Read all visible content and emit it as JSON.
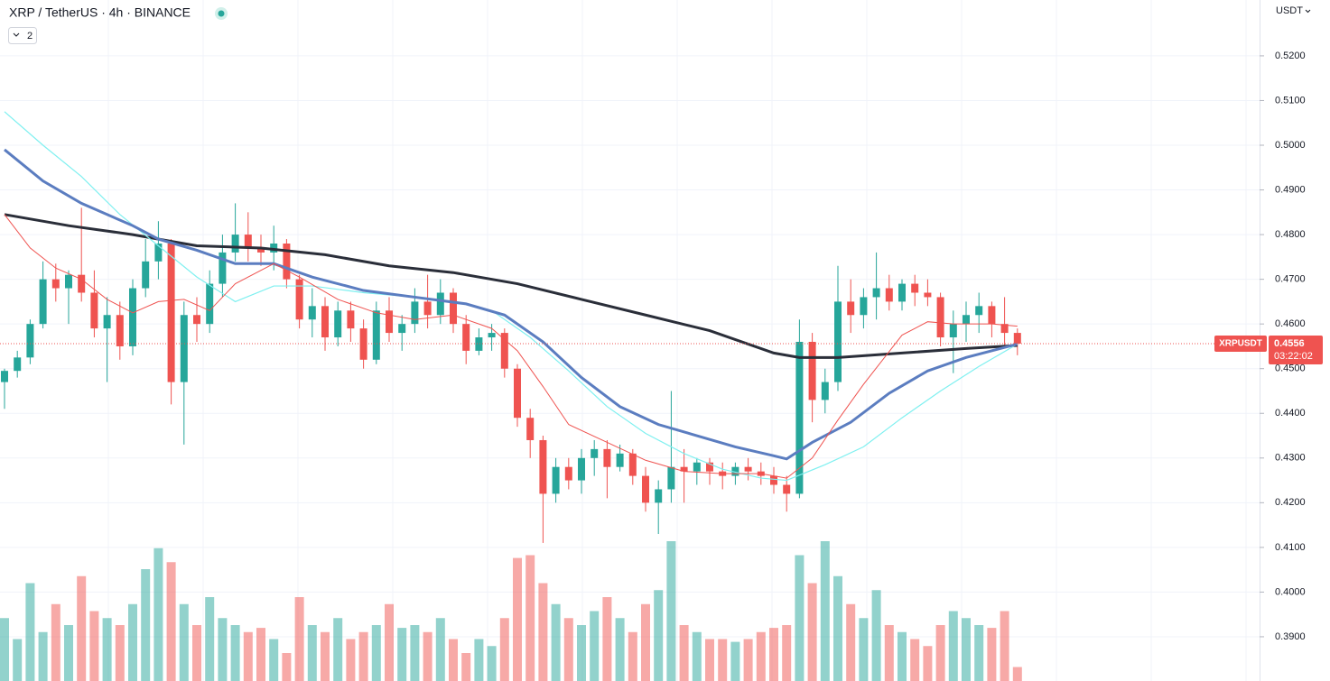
{
  "chart_data": {
    "type": "candlestick",
    "title": "XRP / TetherUS · 4h · BINANCE",
    "indicator_count": "2",
    "currency": "USDT",
    "symbol": "XRPUSDT",
    "last_price": 0.4556,
    "countdown": "03:22:02",
    "up_color": "#26a69a",
    "down_color": "#ef5350",
    "ylim": [
      0.3801,
      0.5325
    ],
    "yticks": [
      {
        "value": 0.39,
        "label": "0.3900"
      },
      {
        "value": 0.4,
        "label": "0.4000"
      },
      {
        "value": 0.41,
        "label": "0.4100"
      },
      {
        "value": 0.42,
        "label": "0.4200"
      },
      {
        "value": 0.43,
        "label": "0.4300"
      },
      {
        "value": 0.44,
        "label": "0.4400"
      },
      {
        "value": 0.45,
        "label": "0.4500"
      },
      {
        "value": 0.46,
        "label": "0.4600"
      },
      {
        "value": 0.47,
        "label": "0.4700"
      },
      {
        "value": 0.48,
        "label": "0.4800"
      },
      {
        "value": 0.49,
        "label": "0.4900"
      },
      {
        "value": 0.5,
        "label": "0.5000"
      },
      {
        "value": 0.51,
        "label": "0.5100"
      },
      {
        "value": 0.52,
        "label": "0.5200"
      }
    ],
    "grid": true,
    "volume_lim": [
      0,
      100
    ],
    "candles": [
      [
        0.447,
        0.45,
        0.441,
        0.4495
      ],
      [
        0.4495,
        0.454,
        0.448,
        0.4525
      ],
      [
        0.4525,
        0.461,
        0.451,
        0.46
      ],
      [
        0.46,
        0.474,
        0.459,
        0.47
      ],
      [
        0.47,
        0.4735,
        0.465,
        0.468
      ],
      [
        0.468,
        0.472,
        0.46,
        0.471
      ],
      [
        0.471,
        0.486,
        0.465,
        0.467
      ],
      [
        0.467,
        0.472,
        0.457,
        0.459
      ],
      [
        0.459,
        0.466,
        0.447,
        0.462
      ],
      [
        0.462,
        0.465,
        0.452,
        0.455
      ],
      [
        0.455,
        0.47,
        0.453,
        0.468
      ],
      [
        0.468,
        0.479,
        0.466,
        0.474
      ],
      [
        0.474,
        0.483,
        0.47,
        0.478
      ],
      [
        0.478,
        0.479,
        0.442,
        0.447
      ],
      [
        0.447,
        0.465,
        0.433,
        0.462
      ],
      [
        0.462,
        0.466,
        0.456,
        0.46
      ],
      [
        0.46,
        0.472,
        0.458,
        0.469
      ],
      [
        0.469,
        0.48,
        0.466,
        0.476
      ],
      [
        0.476,
        0.487,
        0.474,
        0.48
      ],
      [
        0.48,
        0.485,
        0.474,
        0.477
      ],
      [
        0.477,
        0.48,
        0.473,
        0.476
      ],
      [
        0.476,
        0.482,
        0.472,
        0.478
      ],
      [
        0.478,
        0.479,
        0.468,
        0.47
      ],
      [
        0.47,
        0.471,
        0.459,
        0.461
      ],
      [
        0.461,
        0.468,
        0.457,
        0.464
      ],
      [
        0.464,
        0.466,
        0.454,
        0.457
      ],
      [
        0.457,
        0.465,
        0.455,
        0.463
      ],
      [
        0.463,
        0.465,
        0.456,
        0.459
      ],
      [
        0.459,
        0.461,
        0.45,
        0.452
      ],
      [
        0.452,
        0.465,
        0.451,
        0.463
      ],
      [
        0.463,
        0.466,
        0.456,
        0.458
      ],
      [
        0.458,
        0.462,
        0.454,
        0.46
      ],
      [
        0.46,
        0.468,
        0.458,
        0.465
      ],
      [
        0.465,
        0.471,
        0.459,
        0.462
      ],
      [
        0.462,
        0.47,
        0.46,
        0.467
      ],
      [
        0.467,
        0.468,
        0.458,
        0.46
      ],
      [
        0.46,
        0.462,
        0.451,
        0.454
      ],
      [
        0.454,
        0.459,
        0.453,
        0.457
      ],
      [
        0.457,
        0.46,
        0.454,
        0.458
      ],
      [
        0.458,
        0.459,
        0.448,
        0.45
      ],
      [
        0.45,
        0.451,
        0.437,
        0.439
      ],
      [
        0.439,
        0.441,
        0.43,
        0.434
      ],
      [
        0.434,
        0.435,
        0.411,
        0.422
      ],
      [
        0.422,
        0.43,
        0.42,
        0.428
      ],
      [
        0.428,
        0.43,
        0.423,
        0.425
      ],
      [
        0.425,
        0.432,
        0.422,
        0.43
      ],
      [
        0.43,
        0.434,
        0.426,
        0.432
      ],
      [
        0.432,
        0.434,
        0.421,
        0.428
      ],
      [
        0.428,
        0.433,
        0.427,
        0.431
      ],
      [
        0.431,
        0.432,
        0.424,
        0.426
      ],
      [
        0.426,
        0.428,
        0.418,
        0.42
      ],
      [
        0.42,
        0.425,
        0.413,
        0.423
      ],
      [
        0.423,
        0.445,
        0.42,
        0.428
      ],
      [
        0.428,
        0.432,
        0.42,
        0.427
      ],
      [
        0.427,
        0.43,
        0.424,
        0.429
      ],
      [
        0.429,
        0.43,
        0.424,
        0.427
      ],
      [
        0.427,
        0.429,
        0.423,
        0.426
      ],
      [
        0.426,
        0.429,
        0.424,
        0.428
      ],
      [
        0.428,
        0.43,
        0.425,
        0.427
      ],
      [
        0.427,
        0.429,
        0.424,
        0.426
      ],
      [
        0.426,
        0.428,
        0.422,
        0.424
      ],
      [
        0.424,
        0.426,
        0.418,
        0.422
      ],
      [
        0.422,
        0.461,
        0.421,
        0.456
      ],
      [
        0.456,
        0.458,
        0.438,
        0.443
      ],
      [
        0.443,
        0.45,
        0.44,
        0.447
      ],
      [
        0.447,
        0.473,
        0.445,
        0.465
      ],
      [
        0.465,
        0.47,
        0.458,
        0.462
      ],
      [
        0.462,
        0.468,
        0.459,
        0.466
      ],
      [
        0.466,
        0.476,
        0.461,
        0.468
      ],
      [
        0.468,
        0.471,
        0.463,
        0.465
      ],
      [
        0.465,
        0.47,
        0.463,
        0.469
      ],
      [
        0.469,
        0.471,
        0.464,
        0.467
      ],
      [
        0.467,
        0.47,
        0.464,
        0.466
      ],
      [
        0.466,
        0.467,
        0.455,
        0.457
      ],
      [
        0.457,
        0.463,
        0.449,
        0.46
      ],
      [
        0.46,
        0.465,
        0.456,
        0.462
      ],
      [
        0.462,
        0.467,
        0.458,
        0.464
      ],
      [
        0.464,
        0.465,
        0.457,
        0.46
      ],
      [
        0.46,
        0.466,
        0.455,
        0.458
      ],
      [
        0.458,
        0.459,
        0.453,
        0.4556
      ]
    ],
    "volumes": [
      45,
      30,
      70,
      35,
      55,
      40,
      75,
      50,
      45,
      40,
      55,
      80,
      95,
      85,
      55,
      40,
      60,
      45,
      40,
      35,
      38,
      30,
      20,
      60,
      40,
      35,
      45,
      30,
      35,
      40,
      55,
      38,
      40,
      35,
      45,
      30,
      20,
      30,
      25,
      45,
      88,
      90,
      70,
      55,
      45,
      40,
      50,
      60,
      45,
      35,
      55,
      65,
      100,
      40,
      35,
      30,
      30,
      28,
      30,
      35,
      38,
      40,
      90,
      70,
      100,
      75,
      55,
      45,
      65,
      40,
      35,
      30,
      25,
      40,
      50,
      45,
      40,
      38,
      50,
      10
    ],
    "lines": [
      {
        "color": "#2a2e39",
        "width": 3,
        "x": [
          0,
          5,
          10,
          15,
          20,
          25,
          30,
          35,
          40,
          45,
          50,
          55,
          60,
          62,
          65,
          70,
          75,
          79
        ],
        "values": [
          0.4845,
          0.482,
          0.48,
          0.4775,
          0.477,
          0.4755,
          0.473,
          0.4715,
          0.469,
          0.4655,
          0.462,
          0.4585,
          0.4535,
          0.4525,
          0.4525,
          0.4535,
          0.4545,
          0.4552
        ]
      },
      {
        "color": "#7ff0f0",
        "width": 1.2,
        "x": [
          0,
          3,
          6,
          9,
          12,
          15,
          18,
          21,
          24,
          28,
          32,
          35,
          38,
          41,
          44,
          47,
          50,
          53,
          56,
          59,
          61,
          64,
          67,
          70,
          73,
          76,
          79
        ],
        "values": [
          0.5075,
          0.5,
          0.493,
          0.4845,
          0.4775,
          0.4705,
          0.465,
          0.4685,
          0.4685,
          0.467,
          0.466,
          0.465,
          0.463,
          0.457,
          0.4495,
          0.4415,
          0.4355,
          0.431,
          0.4275,
          0.4255,
          0.425,
          0.4285,
          0.4325,
          0.439,
          0.445,
          0.4505,
          0.4555
        ]
      },
      {
        "color": "#5b7dc0",
        "width": 3,
        "x": [
          0,
          3,
          6,
          10,
          12,
          15,
          18,
          21,
          24,
          28,
          32,
          36,
          39,
          42,
          45,
          48,
          51,
          54,
          57,
          60,
          61,
          63,
          66,
          69,
          72,
          75,
          79
        ],
        "values": [
          0.499,
          0.492,
          0.487,
          0.482,
          0.479,
          0.4765,
          0.4735,
          0.4735,
          0.4705,
          0.4675,
          0.466,
          0.4645,
          0.462,
          0.456,
          0.448,
          0.4415,
          0.4375,
          0.435,
          0.4325,
          0.4305,
          0.4298,
          0.4335,
          0.438,
          0.4445,
          0.4495,
          0.4525,
          0.4555
        ]
      },
      {
        "color": "#ef5350",
        "width": 1,
        "x": [
          0,
          2,
          4,
          6,
          8,
          10,
          12,
          14,
          16,
          18,
          21,
          23,
          26,
          29,
          32,
          35,
          38,
          40,
          42,
          44,
          47,
          50,
          53,
          56,
          59,
          61,
          63,
          65,
          67,
          70,
          72,
          74,
          77,
          79
        ],
        "values": [
          0.4845,
          0.477,
          0.4725,
          0.47,
          0.4655,
          0.4625,
          0.465,
          0.4655,
          0.463,
          0.469,
          0.4735,
          0.4705,
          0.4655,
          0.4625,
          0.461,
          0.462,
          0.459,
          0.454,
          0.446,
          0.4375,
          0.4335,
          0.4295,
          0.427,
          0.4265,
          0.4265,
          0.4255,
          0.43,
          0.4385,
          0.4465,
          0.4575,
          0.4605,
          0.46,
          0.46,
          0.4595
        ]
      }
    ]
  }
}
